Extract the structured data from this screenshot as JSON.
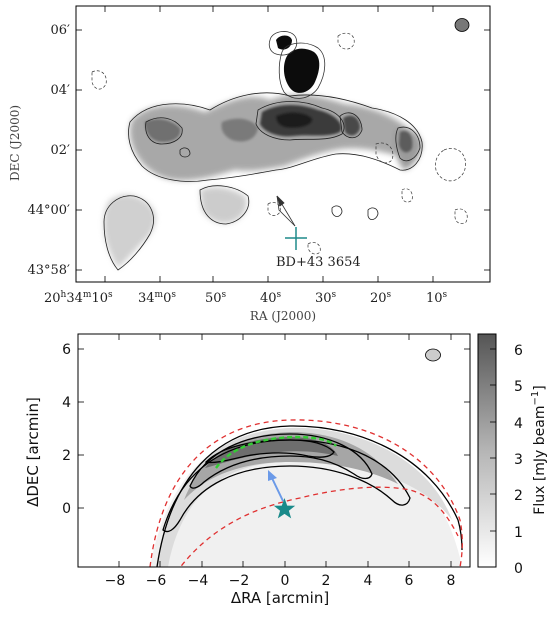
{
  "chart_data": [
    {
      "type": "heatmap",
      "panel": "top",
      "xlabel": "RA (J2000)",
      "ylabel": "DEC (J2000)",
      "x_ticks": [
        {
          "h": "20",
          "m": "34",
          "s": "10"
        },
        {
          "m": "34",
          "s": "0"
        },
        {
          "s": "50"
        },
        {
          "s": "40"
        },
        {
          "s": "30"
        },
        {
          "s": "20"
        },
        {
          "s": "10"
        }
      ],
      "y_ticks": [
        {
          "deg": "",
          "min": "06",
          "label": "06′"
        },
        {
          "deg": "",
          "min": "04",
          "label": "04′"
        },
        {
          "deg": "",
          "min": "02",
          "label": "02′"
        },
        {
          "deg": "44",
          "min": "00",
          "label": "44°00′"
        },
        {
          "deg": "43",
          "min": "58",
          "label": "43°58′"
        }
      ],
      "annotation": "BD+43 3654",
      "colors": {
        "map": "#2a2a2a",
        "marker": "#1f8a8a",
        "contour": "#222222"
      }
    },
    {
      "type": "heatmap",
      "panel": "bottom",
      "xlabel": "ΔRA [arcmin]",
      "ylabel": "ΔDEC [arcmin]",
      "xlim": [
        -10,
        9
      ],
      "ylim": [
        -1.4,
        7.4
      ],
      "x_ticks": [
        "−8",
        "−6",
        "−4",
        "−2",
        "0",
        "2",
        "4",
        "6",
        "8"
      ],
      "y_ticks": [
        "0",
        "2",
        "4",
        "6"
      ],
      "colorbar": {
        "label": "Flux [mJy beam−1]",
        "label_main": "Flux [mJy beam",
        "label_sup": "−1",
        "label_end": "]",
        "ticks": [
          "0",
          "1",
          "2",
          "3",
          "4",
          "5",
          "6"
        ],
        "range": [
          0,
          6.4
        ]
      },
      "star": {
        "x": 0,
        "y": 0
      },
      "arrow": {
        "from": [
          0,
          0.5
        ],
        "to": [
          -0.7,
          1.4
        ]
      },
      "colors": {
        "star": "#1a8a8a",
        "arrow": "#6b9ae8",
        "model_limits": "#e03030",
        "highlight": "#33cc33"
      }
    }
  ]
}
